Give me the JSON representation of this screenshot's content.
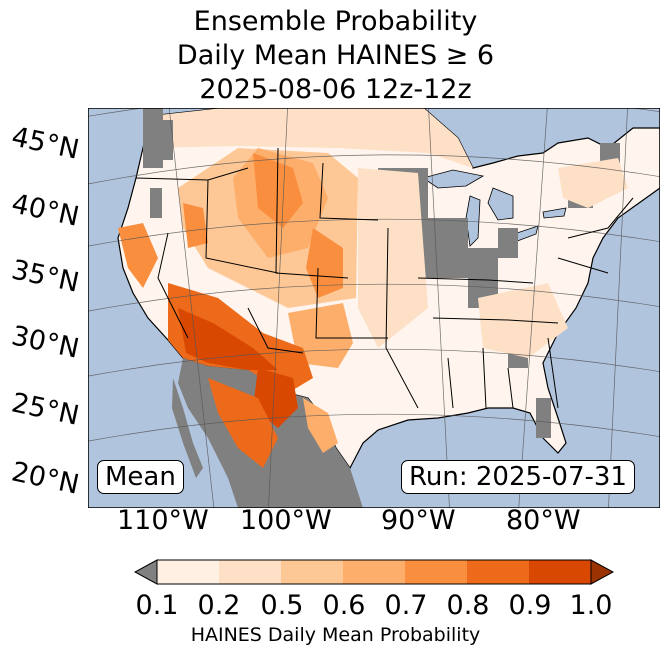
{
  "title": {
    "line1": "Ensemble Probability",
    "line2": "Daily Mean HAINES ≥ 6",
    "line3": "2025-08-06 12z-12z"
  },
  "axes": {
    "lat_labels": [
      "45°N",
      "40°N",
      "35°N",
      "30°N",
      "25°N",
      "20°N"
    ],
    "lon_labels": [
      "110°W",
      "100°W",
      "90°W",
      "80°W"
    ]
  },
  "boxes": {
    "left": "Mean",
    "right": "Run: 2025-07-31"
  },
  "colorbar": {
    "ticks": [
      "0.1",
      "0.2",
      "0.5",
      "0.6",
      "0.7",
      "0.8",
      "0.9",
      "1.0"
    ],
    "colors": [
      "#fff0e3",
      "#fde0c5",
      "#fdc896",
      "#fdae6b",
      "#f98f3e",
      "#ed6a1a",
      "#d94801"
    ],
    "under_color": "#808080",
    "over_color": "#9a3202",
    "label": "HAINES Daily Mean Probability"
  },
  "map_colors": {
    "ocean": "#b0c4de",
    "land": "#fff5ee",
    "missing": "#808080",
    "water": "#b0c4de",
    "borders": "#000000",
    "grid": "#555555"
  }
}
